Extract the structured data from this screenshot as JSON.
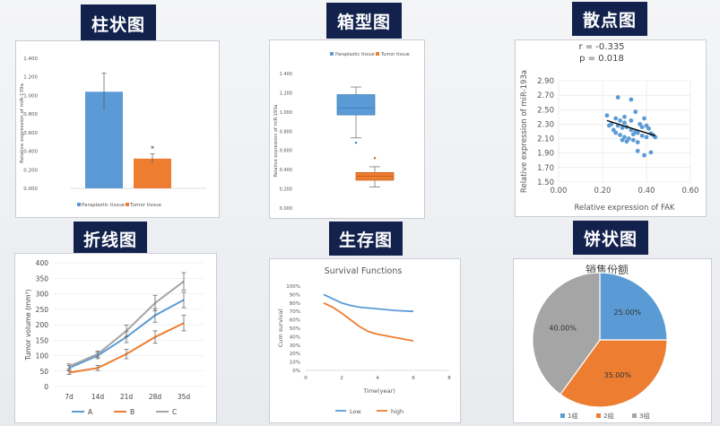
{
  "titles": {
    "bar": "柱状图",
    "box": "箱型图",
    "scatter": "散点图",
    "line": "折线图",
    "survival": "生存图",
    "pie": "饼状图"
  },
  "colors": {
    "blue": "#5b9bd5",
    "orange": "#ed7d31",
    "gray": "#a5a5a5",
    "title_bg": "#12224d"
  },
  "chart_data": [
    {
      "type": "bar",
      "title": "",
      "ylabel": "Relative expression of miR-139a",
      "categories": [
        "Paraplastic tissue",
        "Tumor tissue"
      ],
      "values": [
        1.04,
        0.32
      ],
      "errors": [
        0.2,
        0.05
      ],
      "annotations": [
        "",
        "*"
      ],
      "ylim": [
        0,
        1.4
      ],
      "yticks": [
        "0.000",
        "0.200",
        "0.400",
        "0.600",
        "0.800",
        "1.000",
        "1.200",
        "1.400"
      ],
      "legend": [
        "Paraplastic tissue",
        "Tumor tissue"
      ],
      "legend_position": "bottom"
    },
    {
      "type": "box",
      "title": "",
      "ylabel": "Relative expression of miR-193a",
      "legend": [
        "Paraplastic tissue",
        "Tumor tissue"
      ],
      "legend_position": "top",
      "ylim": [
        0,
        1.4
      ],
      "yticks": [
        "0.000",
        "0.200",
        "0.400",
        "0.600",
        "0.800",
        "1.000",
        "1.200",
        "1.400"
      ],
      "series": [
        {
          "name": "Paraplastic tissue",
          "min": 0.73,
          "q1": 0.97,
          "median": 1.04,
          "q3": 1.18,
          "max": 1.26,
          "outliers": [
            0.68
          ]
        },
        {
          "name": "Tumor tissue",
          "min": 0.22,
          "q1": 0.29,
          "median": 0.33,
          "q3": 0.37,
          "max": 0.43,
          "outliers": [
            0.52
          ]
        }
      ]
    },
    {
      "type": "scatter",
      "annotations": [
        "r = -0.335",
        "p = 0.018"
      ],
      "xlabel": "Relative expression of FAK",
      "ylabel": "Relative expression of miR-193a",
      "xlim": [
        0,
        0.6
      ],
      "ylim": [
        1.5,
        2.9
      ],
      "xticks": [
        "0.00",
        "0.20",
        "0.40",
        "0.60"
      ],
      "yticks": [
        "1.50",
        "1.70",
        "1.90",
        "2.10",
        "2.30",
        "2.50",
        "2.70",
        "2.90"
      ],
      "trendline": [
        [
          0.22,
          2.35
        ],
        [
          0.44,
          2.14
        ]
      ],
      "points": [
        [
          0.27,
          2.67
        ],
        [
          0.33,
          2.64
        ],
        [
          0.22,
          2.42
        ],
        [
          0.26,
          2.38
        ],
        [
          0.28,
          2.35
        ],
        [
          0.3,
          2.32
        ],
        [
          0.24,
          2.3
        ],
        [
          0.27,
          2.28
        ],
        [
          0.29,
          2.25
        ],
        [
          0.31,
          2.26
        ],
        [
          0.33,
          2.22
        ],
        [
          0.35,
          2.2
        ],
        [
          0.26,
          2.18
        ],
        [
          0.28,
          2.15
        ],
        [
          0.3,
          2.12
        ],
        [
          0.32,
          2.1
        ],
        [
          0.34,
          2.16
        ],
        [
          0.36,
          2.18
        ],
        [
          0.38,
          2.14
        ],
        [
          0.4,
          2.12
        ],
        [
          0.42,
          2.17
        ],
        [
          0.37,
          2.3
        ],
        [
          0.39,
          2.38
        ],
        [
          0.35,
          2.47
        ],
        [
          0.38,
          2.26
        ],
        [
          0.41,
          2.24
        ],
        [
          0.43,
          2.15
        ],
        [
          0.31,
          2.06
        ],
        [
          0.36,
          1.93
        ],
        [
          0.39,
          1.87
        ],
        [
          0.42,
          1.91
        ],
        [
          0.29,
          2.08
        ],
        [
          0.33,
          2.35
        ],
        [
          0.25,
          2.22
        ],
        [
          0.44,
          2.12
        ],
        [
          0.23,
          2.28
        ],
        [
          0.3,
          2.4
        ],
        [
          0.36,
          2.05
        ],
        [
          0.4,
          2.28
        ],
        [
          0.34,
          2.08
        ]
      ]
    },
    {
      "type": "line",
      "ylabel": "Tumor volume (mm³)",
      "categories": [
        "7d",
        "14d",
        "21d",
        "28d",
        "35d"
      ],
      "ylim": [
        0,
        400
      ],
      "yticks": [
        "0",
        "50",
        "100",
        "150",
        "200",
        "250",
        "300",
        "350",
        "400"
      ],
      "series": [
        {
          "name": "A",
          "values": [
            60,
            100,
            160,
            230,
            280
          ],
          "errors": [
            8,
            10,
            18,
            22,
            25
          ]
        },
        {
          "name": "B",
          "values": [
            45,
            60,
            105,
            160,
            205
          ],
          "errors": [
            6,
            8,
            15,
            20,
            25
          ]
        },
        {
          "name": "C",
          "values": [
            65,
            105,
            180,
            270,
            340
          ],
          "errors": [
            8,
            10,
            18,
            25,
            28
          ]
        }
      ],
      "legend_position": "bottom"
    },
    {
      "type": "line",
      "title": "Survival Functions",
      "xlabel": "Time(year)",
      "ylabel": "Cum survival",
      "xlim": [
        0,
        8
      ],
      "ylim": [
        0,
        100
      ],
      "xticks": [
        "0",
        "2",
        "4",
        "6",
        "8"
      ],
      "yticks": [
        "0%",
        "10%",
        "20%",
        "30%",
        "40%",
        "50%",
        "60%",
        "70%",
        "80%",
        "90%",
        "100%"
      ],
      "series": [
        {
          "name": "Low",
          "points": [
            [
              1,
              90
            ],
            [
              1.5,
              85
            ],
            [
              2,
              80
            ],
            [
              2.5,
              77
            ],
            [
              3,
              75
            ],
            [
              4,
              73
            ],
            [
              5,
              71
            ],
            [
              6,
              70
            ]
          ]
        },
        {
          "name": "high",
          "points": [
            [
              1,
              80
            ],
            [
              1.5,
              75
            ],
            [
              2,
              68
            ],
            [
              2.5,
              60
            ],
            [
              3,
              52
            ],
            [
              3.5,
              46
            ],
            [
              4,
              43
            ],
            [
              5,
              39
            ],
            [
              6,
              35
            ]
          ]
        }
      ],
      "legend_position": "bottom"
    },
    {
      "type": "pie",
      "title": "销售份额",
      "categories": [
        "1组",
        "2组",
        "3组"
      ],
      "values": [
        25,
        35,
        40
      ],
      "labels": [
        "25.00%",
        "35.00%",
        "40.00%"
      ],
      "legend_position": "bottom"
    }
  ]
}
